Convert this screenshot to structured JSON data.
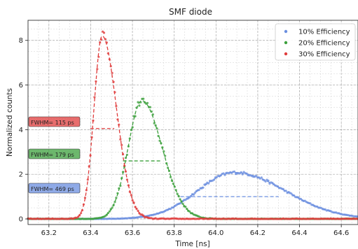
{
  "chart_data": {
    "type": "scatter",
    "title": "SMF diode",
    "xlabel": "Time [ns]",
    "ylabel": "Normalized counts",
    "xlim": [
      63.1,
      64.68
    ],
    "ylim": [
      -0.25,
      8.9
    ],
    "xticks": [
      "63.2",
      "63.4",
      "63.6",
      "63.8",
      "64.0",
      "64.2",
      "64.4",
      "64.6"
    ],
    "yticks": [
      "0",
      "2",
      "4",
      "6",
      "8"
    ],
    "grid": "on (major and minor, dashed)",
    "legend_position": "top-right",
    "series": [
      {
        "name": "10% Efficiency",
        "color": "#6b8fe0",
        "peak_time_ns": 64.09,
        "peak_counts": 2.08,
        "fwhm_label": "FWHM= 469 ps",
        "fwhm_ns": 0.469,
        "half_max_counts": 1.0,
        "fwhm_line": [
          63.83,
          64.3
        ]
      },
      {
        "name": "20% Efficiency",
        "color": "#3ca03c",
        "peak_time_ns": 63.645,
        "peak_counts": 5.3,
        "fwhm_label": "FWHM= 179 ps",
        "fwhm_ns": 0.179,
        "half_max_counts": 2.6,
        "fwhm_line": [
          63.555,
          63.734
        ]
      },
      {
        "name": "30% Efficiency",
        "color": "#e03c3c",
        "peak_time_ns": 63.455,
        "peak_counts": 8.2,
        "fwhm_label": "FWHM= 115 ps",
        "fwhm_ns": 0.115,
        "half_max_counts": 4.05,
        "fwhm_line": [
          63.398,
          63.513
        ]
      }
    ]
  }
}
